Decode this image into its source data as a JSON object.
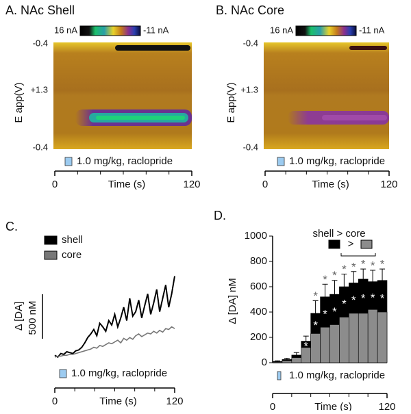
{
  "chart_data": [
    {
      "type": "colorplot",
      "title": "A. NAc Shell",
      "colorbar_labels": [
        "16 nA",
        "-11 nA"
      ],
      "ylabel": "E app(V)",
      "y_tick_labels": [
        "-0.4",
        "+1.3",
        "-0.4"
      ],
      "xlabel": "Time (s)",
      "xlim": [
        0,
        120
      ],
      "xticks": [
        0,
        120
      ],
      "annotation": "1.0 mg/kg, raclopride"
    },
    {
      "type": "colorplot",
      "title": "B. NAc Core",
      "colorbar_labels": [
        "16 nA",
        "-11 nA"
      ],
      "ylabel": "E app(V)",
      "y_tick_labels": [
        "-0.4",
        "+1.3",
        "-0.4"
      ],
      "xlabel": "Time (s)",
      "xlim": [
        0,
        120
      ],
      "xticks": [
        0,
        120
      ],
      "annotation": "1.0 mg/kg, raclopride"
    },
    {
      "type": "line",
      "title": "C.",
      "ylabel": "Δ [DA]",
      "scalebar": {
        "value": 500,
        "label": "500 nM"
      },
      "xlim": [
        0,
        120
      ],
      "xticks": [
        0,
        120
      ],
      "ylim": [
        -100,
        1000
      ],
      "xlabel": "Time (s)",
      "annotation": "1.0 mg/kg, raclopride",
      "x": [
        0,
        3,
        6,
        9,
        12,
        15,
        18,
        21,
        24,
        27,
        30,
        33,
        36,
        39,
        42,
        45,
        48,
        51,
        54,
        57,
        60,
        63,
        66,
        69,
        72,
        75,
        78,
        81,
        84,
        87,
        90,
        93,
        96,
        99,
        102,
        105,
        108,
        111,
        114,
        117,
        120
      ],
      "series": [
        {
          "name": "shell",
          "color": "#000000",
          "values": [
            60,
            40,
            80,
            70,
            100,
            90,
            80,
            110,
            120,
            150,
            200,
            260,
            300,
            350,
            280,
            420,
            380,
            330,
            450,
            400,
            520,
            380,
            480,
            600,
            450,
            700,
            500,
            550,
            680,
            480,
            620,
            750,
            520,
            650,
            800,
            550,
            700,
            850,
            600,
            750,
            950
          ]
        },
        {
          "name": "core",
          "color": "#777777",
          "values": [
            40,
            50,
            50,
            60,
            60,
            70,
            70,
            80,
            90,
            100,
            110,
            120,
            130,
            150,
            140,
            170,
            160,
            180,
            200,
            190,
            210,
            230,
            200,
            250,
            230,
            260,
            240,
            280,
            300,
            270,
            290,
            310,
            300,
            330,
            310,
            340,
            320,
            360,
            350,
            380,
            360
          ]
        }
      ]
    },
    {
      "type": "bar",
      "title": "D.",
      "ylabel": "Δ [DA] nM",
      "legend_text": "shell > core",
      "legend_symbol": ">",
      "ylim": [
        0,
        1000
      ],
      "yticks": [
        0,
        200,
        400,
        600,
        800,
        1000
      ],
      "xlim": [
        0,
        120
      ],
      "xticks": [
        0,
        120
      ],
      "xlabel": "Time (s)",
      "annotation": "1.0 mg/kg, raclopride",
      "x": [
        5,
        15,
        25,
        35,
        45,
        55,
        65,
        75,
        85,
        95,
        105,
        115
      ],
      "series": [
        {
          "color": "#000000",
          "values": [
            10,
            25,
            60,
            170,
            390,
            520,
            540,
            600,
            630,
            660,
            640,
            650
          ],
          "errors": [
            5,
            10,
            20,
            40,
            100,
            100,
            110,
            100,
            90,
            80,
            90,
            90
          ]
        },
        {
          "color": "#8c8c8c",
          "values": [
            5,
            15,
            40,
            120,
            230,
            280,
            300,
            360,
            390,
            390,
            420,
            400
          ]
        }
      ],
      "top_marks": [
        null,
        null,
        null,
        null,
        "*",
        "*",
        "*",
        "*",
        "*",
        "*",
        "*",
        "*"
      ],
      "inner_marks": [
        null,
        null,
        null,
        "*",
        "*",
        "*",
        "*",
        "*",
        "*",
        "*",
        "*",
        "*"
      ]
    }
  ]
}
